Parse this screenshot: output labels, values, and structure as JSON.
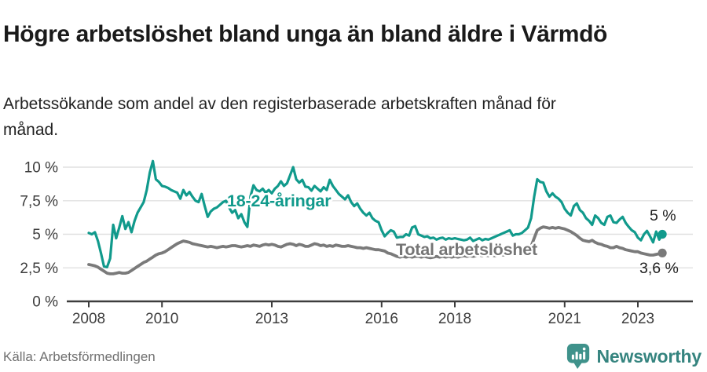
{
  "header": {
    "title": "Högre arbetslöshet bland unga än bland äldre i Värmdö",
    "subtitle": "Arbetssökande som andel av den registerbaserade arbetskraften månad för månad."
  },
  "colors": {
    "grid": "#e0e0e0",
    "axis": "#3d3d3d",
    "youth_teal": "#119a8c",
    "total_gray": "#7a7a7a",
    "brand_teal": "#3f928b"
  },
  "chart_data": {
    "type": "line",
    "frequency": "monthly",
    "x_range": "2008-01 to 2023-09",
    "x_tick_years": [
      2008,
      2010,
      2013,
      2016,
      2018,
      2021,
      2023
    ],
    "x_tick_labels": [
      "2008",
      "2010",
      "2013",
      "2016",
      "2018",
      "2021",
      "2023"
    ],
    "y_ticks": [
      0,
      2.5,
      5,
      7.5,
      10
    ],
    "y_tick_labels": [
      "0 %",
      "2,5 %",
      "5 %",
      "7,5 %",
      "10 %"
    ],
    "ylim": [
      0,
      10.8
    ],
    "grid": "horizontal",
    "legend_position": "inline-annotations",
    "series": [
      {
        "id": "youth",
        "name": "18-24-åringar",
        "color": "#119a8c",
        "end_label": "5 %",
        "end_value": 5.0,
        "values": [
          5.1,
          5.0,
          5.15,
          4.5,
          3.6,
          2.6,
          2.55,
          3.2,
          5.7,
          4.7,
          5.5,
          6.35,
          5.4,
          5.9,
          5.15,
          6.0,
          6.6,
          7.0,
          7.4,
          8.3,
          9.6,
          10.45,
          9.1,
          8.9,
          8.6,
          8.55,
          8.45,
          8.3,
          8.2,
          8.1,
          7.65,
          8.3,
          7.9,
          8.15,
          7.8,
          7.5,
          7.4,
          8.0,
          7.1,
          6.3,
          6.7,
          6.9,
          7.0,
          7.2,
          7.4,
          7.5,
          7.0,
          6.6,
          6.8,
          6.2,
          6.5,
          5.9,
          5.55,
          7.8,
          8.65,
          8.3,
          8.2,
          8.4,
          8.1,
          8.3,
          8.05,
          8.4,
          8.6,
          8.95,
          8.6,
          8.8,
          9.4,
          10.0,
          9.1,
          8.85,
          9.05,
          8.55,
          8.5,
          8.25,
          8.6,
          8.4,
          8.2,
          8.5,
          8.3,
          9.05,
          8.6,
          8.3,
          8.0,
          7.8,
          7.6,
          7.9,
          7.4,
          7.1,
          7.3,
          6.9,
          6.6,
          6.4,
          6.6,
          6.2,
          6.0,
          5.9,
          5.3,
          4.85,
          5.1,
          5.3,
          5.2,
          4.75,
          4.8,
          4.8,
          5.0,
          4.9,
          5.5,
          5.6,
          5.0,
          4.9,
          4.8,
          4.85,
          4.7,
          4.75,
          4.6,
          4.7,
          4.75,
          4.6,
          4.7,
          4.65,
          4.7,
          4.65,
          4.6,
          4.55,
          4.6,
          4.75,
          4.5,
          4.6,
          4.7,
          4.55,
          4.65,
          4.6,
          4.7,
          4.8,
          4.9,
          5.0,
          5.1,
          5.2,
          5.3,
          4.9,
          5.0,
          5.0,
          5.1,
          5.3,
          5.5,
          6.2,
          7.8,
          9.1,
          8.9,
          8.85,
          8.2,
          7.8,
          8.05,
          7.8,
          7.65,
          7.4,
          6.9,
          6.6,
          6.4,
          7.1,
          7.3,
          6.8,
          6.6,
          6.2,
          6.0,
          5.7,
          6.4,
          6.2,
          5.85,
          5.7,
          6.3,
          6.4,
          5.9,
          5.85,
          6.1,
          6.3,
          5.85,
          5.55,
          5.3,
          5.15,
          4.75,
          4.55,
          5.0,
          5.25,
          4.85,
          4.4,
          5.2,
          4.6,
          5.0
        ]
      },
      {
        "id": "total",
        "name": "Total arbetslöshet",
        "color": "#7a7a7a",
        "label_color": "#757575",
        "end_label": "3,6 %",
        "end_value": 3.6,
        "values": [
          2.75,
          2.7,
          2.65,
          2.55,
          2.4,
          2.25,
          2.1,
          2.05,
          2.05,
          2.1,
          2.15,
          2.1,
          2.1,
          2.15,
          2.3,
          2.45,
          2.6,
          2.75,
          2.9,
          3.0,
          3.15,
          3.3,
          3.45,
          3.55,
          3.6,
          3.7,
          3.85,
          4.0,
          4.15,
          4.3,
          4.4,
          4.5,
          4.45,
          4.4,
          4.3,
          4.25,
          4.2,
          4.15,
          4.1,
          4.05,
          4.1,
          4.05,
          4.0,
          4.05,
          4.1,
          4.05,
          4.1,
          4.15,
          4.15,
          4.1,
          4.05,
          4.1,
          4.15,
          4.1,
          4.2,
          4.15,
          4.1,
          4.2,
          4.25,
          4.2,
          4.25,
          4.2,
          4.1,
          4.05,
          4.15,
          4.25,
          4.3,
          4.25,
          4.15,
          4.25,
          4.2,
          4.1,
          4.1,
          4.2,
          4.3,
          4.25,
          4.15,
          4.2,
          4.1,
          4.15,
          4.1,
          4.2,
          4.15,
          4.1,
          4.1,
          4.15,
          4.1,
          4.05,
          4.0,
          4.0,
          3.95,
          4.0,
          3.95,
          3.9,
          3.85,
          3.85,
          3.8,
          3.75,
          3.6,
          3.55,
          3.45,
          3.35,
          3.3,
          3.35,
          3.3,
          3.35,
          3.3,
          3.35,
          3.35,
          3.3,
          3.35,
          3.3,
          3.25,
          3.3,
          3.35,
          3.3,
          3.35,
          3.3,
          3.35,
          3.3,
          3.35,
          3.3,
          3.35,
          3.4,
          3.35,
          3.4,
          3.35,
          3.4,
          3.45,
          3.4,
          3.45,
          3.4,
          3.45,
          3.4,
          3.45,
          3.5,
          3.45,
          3.5,
          3.55,
          3.5,
          3.55,
          3.6,
          3.65,
          3.7,
          3.8,
          4.1,
          4.7,
          5.3,
          5.45,
          5.55,
          5.5,
          5.45,
          5.5,
          5.45,
          5.5,
          5.45,
          5.4,
          5.3,
          5.2,
          5.05,
          4.9,
          4.7,
          4.55,
          4.5,
          4.45,
          4.55,
          4.4,
          4.3,
          4.25,
          4.15,
          4.1,
          4.0,
          4.0,
          4.1,
          4.0,
          3.95,
          3.85,
          3.8,
          3.75,
          3.7,
          3.7,
          3.6,
          3.55,
          3.5,
          3.45,
          3.45,
          3.5,
          3.55,
          3.6
        ]
      }
    ]
  },
  "footer": {
    "source": "Källa: Arbetsförmedlingen",
    "brand": "Newsworthy"
  }
}
